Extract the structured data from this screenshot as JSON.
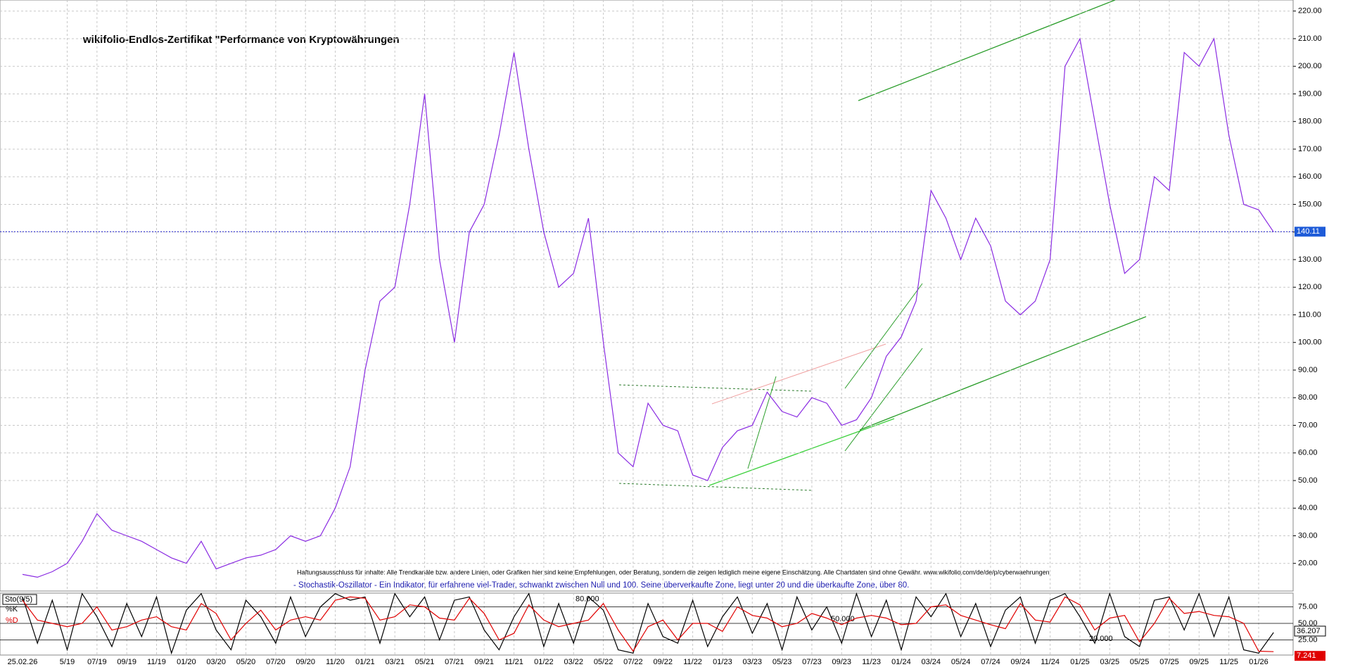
{
  "chart_data": [
    {
      "type": "line",
      "title": "wikifolio-Endlos-Zertifikat \"Performance von Kryptowährungen",
      "disclaimer": "Haftungsausschluss für Inhalte: Alle Trendkanäle bzw. andere Linien, oder Grafiken hier sind keine Empfehlungen, oder Beratung, sondern die zeigen lediglich meine eigene Einschätzung. Alle Chartdaten sind ohne Gewähr.  www.wikifolio.com/de/de/p/cyberwaehrungen",
      "categories": [
        "25.02.26",
        null,
        null,
        "5/19",
        null,
        "07/19",
        null,
        "09/19",
        null,
        "11/19",
        null,
        "01/20",
        null,
        "03/20",
        null,
        "05/20",
        null,
        "07/20",
        null,
        "09/20",
        null,
        "11/20",
        null,
        "01/21",
        null,
        "03/21",
        null,
        "05/21",
        null,
        "07/21",
        null,
        "09/21",
        null,
        "11/21",
        null,
        "01/22",
        null,
        "03/22",
        null,
        "05/22",
        null,
        "07/22",
        null,
        "09/22",
        null,
        "11/22",
        null,
        "01/23",
        null,
        "03/23",
        null,
        "05/23",
        null,
        "07/23",
        null,
        "09/23",
        null,
        "11/23",
        null,
        "01/24",
        null,
        "03/24",
        null,
        "05/24",
        null,
        "07/24",
        null,
        "09/24",
        null,
        "11/24",
        null,
        "01/25",
        null,
        "03/25",
        null,
        "05/25",
        null,
        "07/25",
        null,
        "09/25",
        null,
        "11/25",
        null,
        "01/26",
        null
      ],
      "values": [
        16,
        15,
        17,
        20,
        28,
        38,
        32,
        30,
        28,
        25,
        22,
        20,
        28,
        18,
        20,
        22,
        23,
        25,
        30,
        28,
        30,
        40,
        55,
        90,
        115,
        120,
        150,
        190,
        130,
        100,
        140,
        150,
        175,
        205,
        170,
        140,
        120,
        125,
        145,
        100,
        60,
        55,
        78,
        70,
        68,
        52,
        50,
        62,
        68,
        70,
        82,
        75,
        73,
        80,
        78,
        70,
        72,
        80,
        95,
        102,
        115,
        155,
        145,
        130,
        145,
        135,
        115,
        110,
        115,
        130,
        200,
        210,
        180,
        150,
        125,
        130,
        160,
        155,
        205,
        200,
        210,
        175,
        150,
        148,
        140
      ],
      "color": "#8a2be2",
      "last_value": 140.11,
      "ylim": [
        10,
        224
      ],
      "yticks": [
        {
          "value": 20,
          "label": "20.00"
        },
        {
          "value": 30,
          "label": "30.00"
        },
        {
          "value": 40,
          "label": "40.00"
        },
        {
          "value": 50,
          "label": "50.00"
        },
        {
          "value": 60,
          "label": "60.00"
        },
        {
          "value": 70,
          "label": "70.00"
        },
        {
          "value": 80,
          "label": "80.00"
        },
        {
          "value": 90,
          "label": "90.00"
        },
        {
          "value": 100,
          "label": "100.00"
        },
        {
          "value": 110,
          "label": "110.00"
        },
        {
          "value": 120,
          "label": "120.00"
        },
        {
          "value": 130,
          "label": "130.00"
        },
        {
          "value": 140,
          "label": "140.00"
        },
        {
          "value": 150,
          "label": "150.00"
        },
        {
          "value": 160,
          "label": "160.00"
        },
        {
          "value": 170,
          "label": "170.00"
        },
        {
          "value": 180,
          "label": "180.00"
        },
        {
          "value": 190,
          "label": "190.00"
        },
        {
          "value": 200,
          "label": "200.00"
        },
        {
          "value": 210,
          "label": "210.00"
        },
        {
          "value": 220,
          "label": "220.00"
        }
      ],
      "grid": true
    },
    {
      "type": "line",
      "label": "Sto(9/5)",
      "description": "- Stochastik-Oszillator - Ein Indikator, für erfahrene viel-Trader, schwankt zwischen Null und 100. Seine überverkaufte Zone, liegt unter 20 und die überkaufte Zone, über 80.",
      "series": [
        {
          "name": "%K",
          "color": "#000000",
          "last_value": 36.207,
          "values": [
            90,
            20,
            85,
            10,
            95,
            60,
            15,
            80,
            30,
            90,
            5,
            70,
            95,
            40,
            10,
            85,
            60,
            20,
            90,
            30,
            75,
            95,
            85,
            90,
            20,
            95,
            60,
            90,
            25,
            85,
            90,
            40,
            10,
            60,
            95,
            15,
            80,
            20,
            90,
            70,
            10,
            5,
            80,
            30,
            20,
            85,
            15,
            60,
            90,
            35,
            80,
            10,
            90,
            40,
            75,
            20,
            95,
            30,
            85,
            10,
            90,
            60,
            95,
            30,
            80,
            15,
            70,
            90,
            20,
            85,
            95,
            60,
            20,
            95,
            30,
            15,
            85,
            90,
            40,
            95,
            30,
            90,
            10,
            5,
            36.207
          ]
        },
        {
          "name": "%D",
          "color": "#e00000",
          "last_value": 7.241,
          "values": [
            85,
            55,
            50,
            45,
            50,
            75,
            40,
            45,
            55,
            60,
            45,
            40,
            80,
            65,
            25,
            50,
            70,
            40,
            55,
            60,
            55,
            85,
            90,
            88,
            55,
            60,
            78,
            75,
            58,
            55,
            88,
            65,
            25,
            35,
            78,
            55,
            45,
            50,
            55,
            80,
            40,
            8,
            45,
            55,
            25,
            50,
            50,
            38,
            75,
            62,
            58,
            45,
            50,
            65,
            58,
            48,
            58,
            62,
            58,
            48,
            50,
            75,
            78,
            62,
            55,
            48,
            42,
            80,
            55,
            52,
            90,
            78,
            40,
            58,
            62,
            22,
            50,
            88,
            65,
            68,
            62,
            60,
            50,
            8,
            7.241
          ]
        }
      ],
      "level_labels": [
        {
          "value": 80,
          "label": "80.000"
        },
        {
          "value": 50,
          "label": "50.000"
        },
        {
          "value": 20,
          "label": "20.000"
        }
      ],
      "ylim": [
        0,
        100
      ],
      "yticks": [
        {
          "value": 25,
          "label": "25.00"
        },
        {
          "value": 50,
          "label": "50.00"
        },
        {
          "value": 75,
          "label": "75.00"
        }
      ]
    }
  ]
}
